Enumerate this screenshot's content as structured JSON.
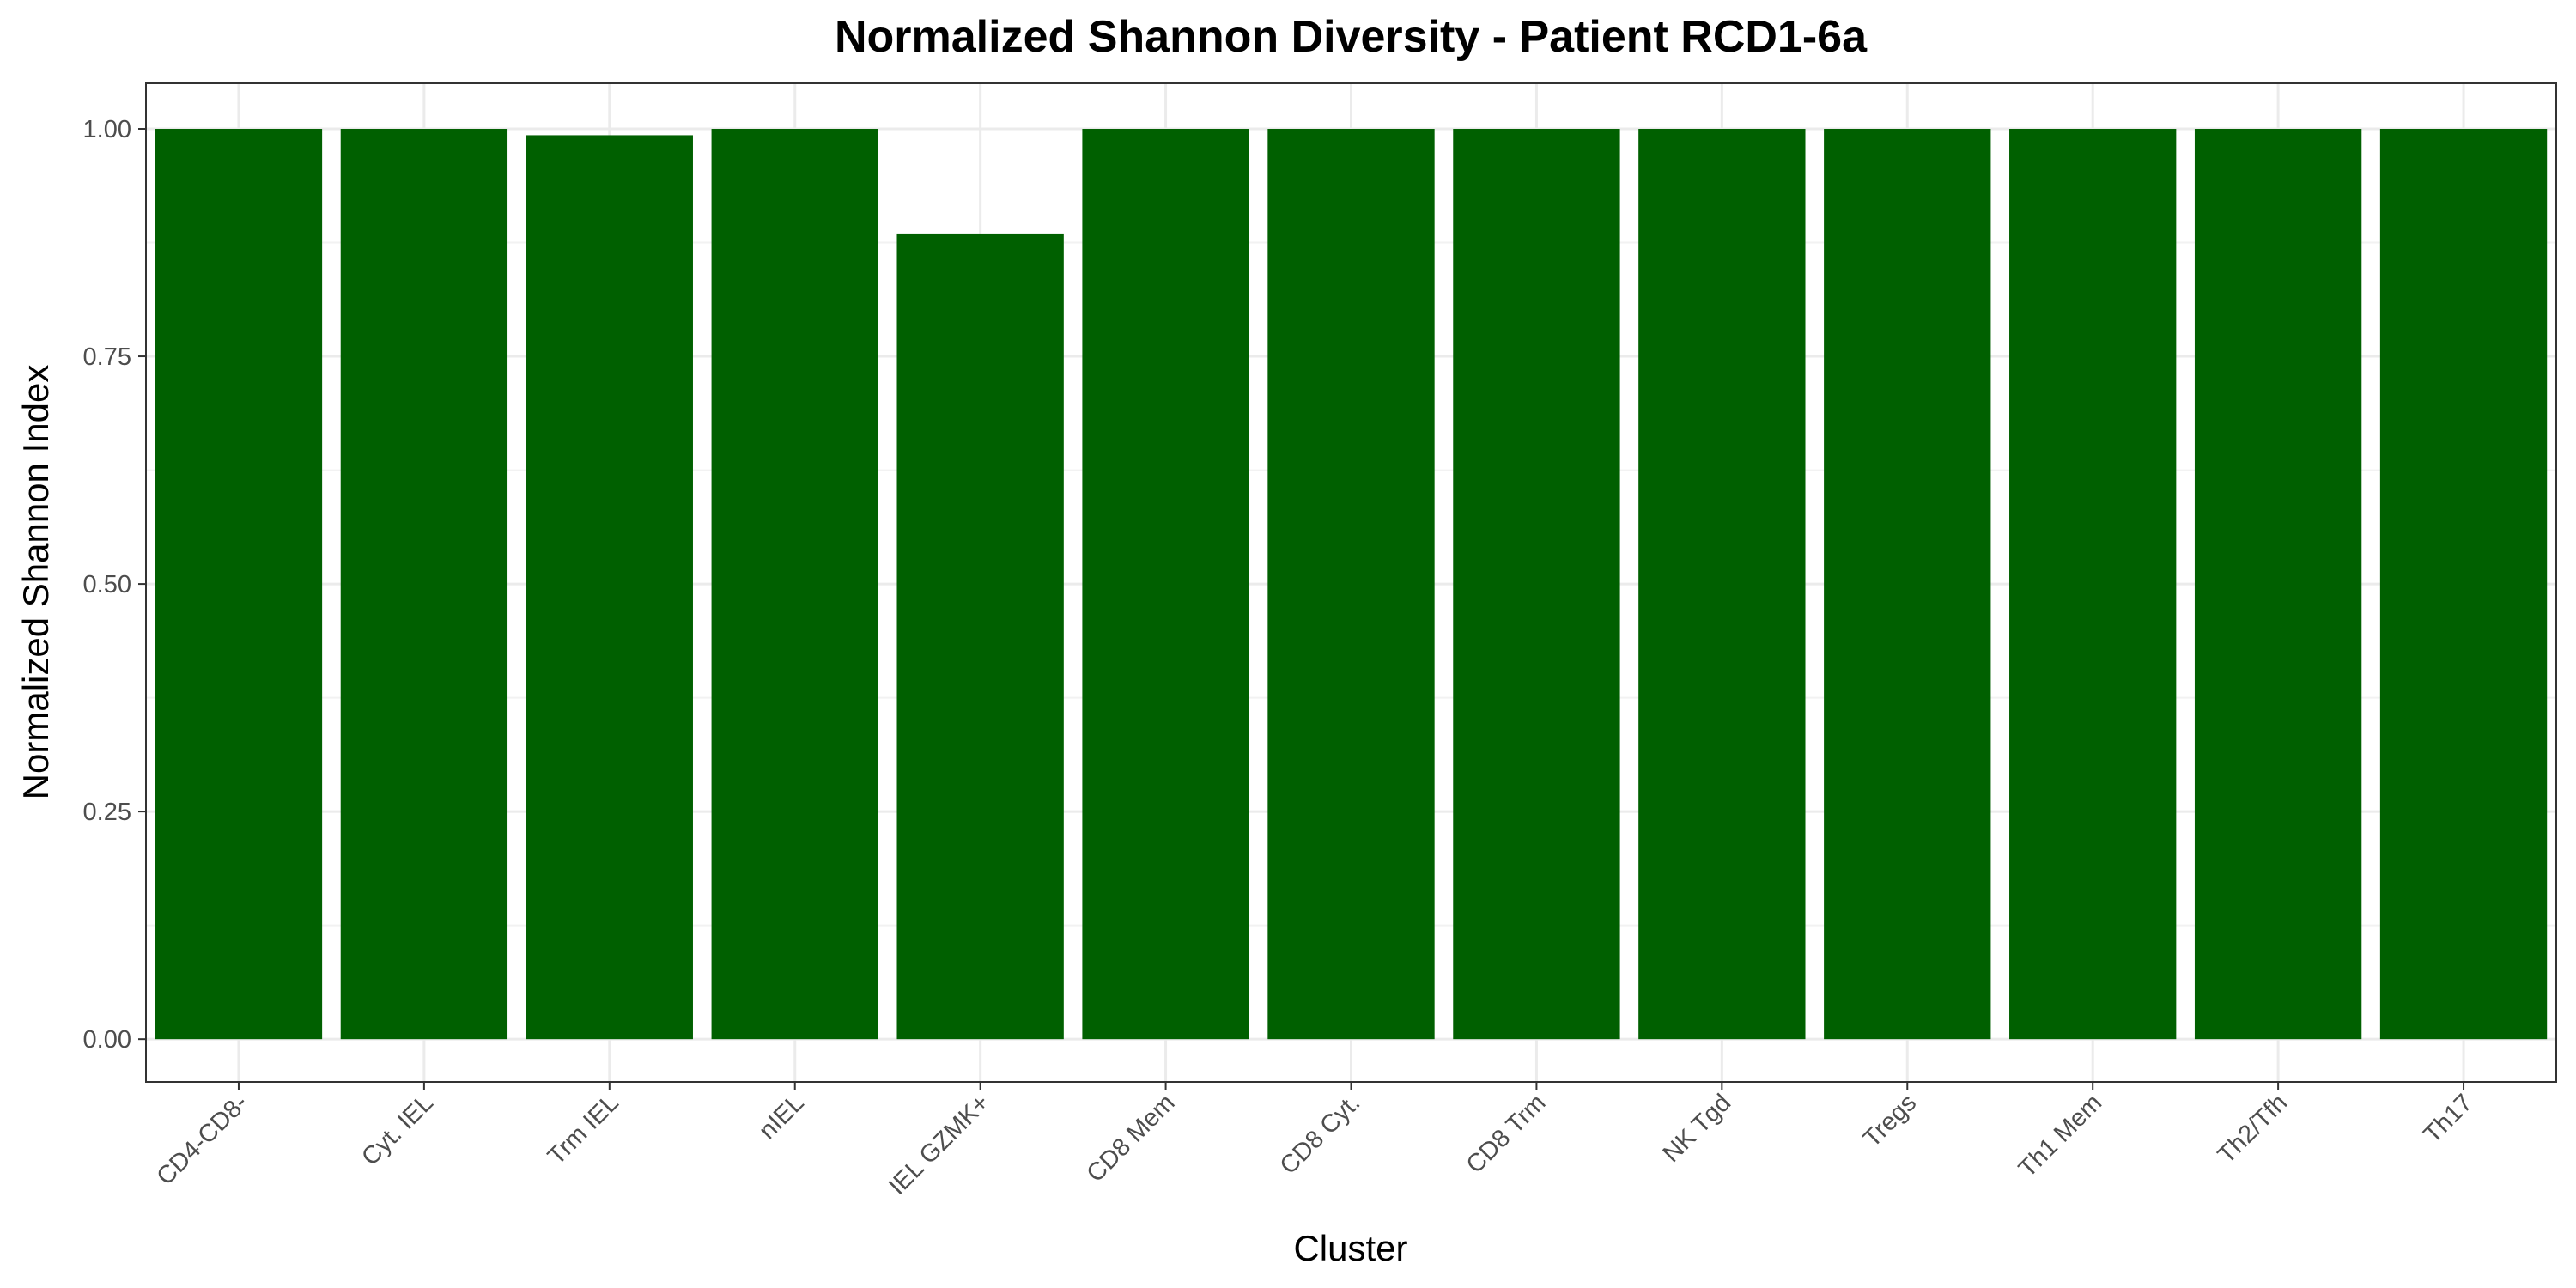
{
  "chart_data": {
    "type": "bar",
    "title": "Normalized Shannon Diversity - Patient RCD1-6a",
    "xlabel": "Cluster",
    "ylabel": "Normalized Shannon Index",
    "categories": [
      "CD4-CD8-",
      "Cyt. IEL",
      "Trm IEL",
      "nIEL",
      "IEL GZMK+",
      "CD8 Mem",
      "CD8 Cyt.",
      "CD8 Trm",
      "NK Tgd",
      "Tregs",
      "Th1 Mem",
      "Th2/Tfh",
      "Th17"
    ],
    "values": [
      1.0,
      1.0,
      0.993,
      1.0,
      0.885,
      1.0,
      1.0,
      1.0,
      1.0,
      1.0,
      1.0,
      1.0,
      1.0
    ],
    "yticks": [
      "0.00",
      "0.25",
      "0.50",
      "0.75",
      "1.00"
    ],
    "ylim": [
      -0.047,
      1.05
    ],
    "grid": true,
    "bar_color": "#006000",
    "legend": "none"
  }
}
